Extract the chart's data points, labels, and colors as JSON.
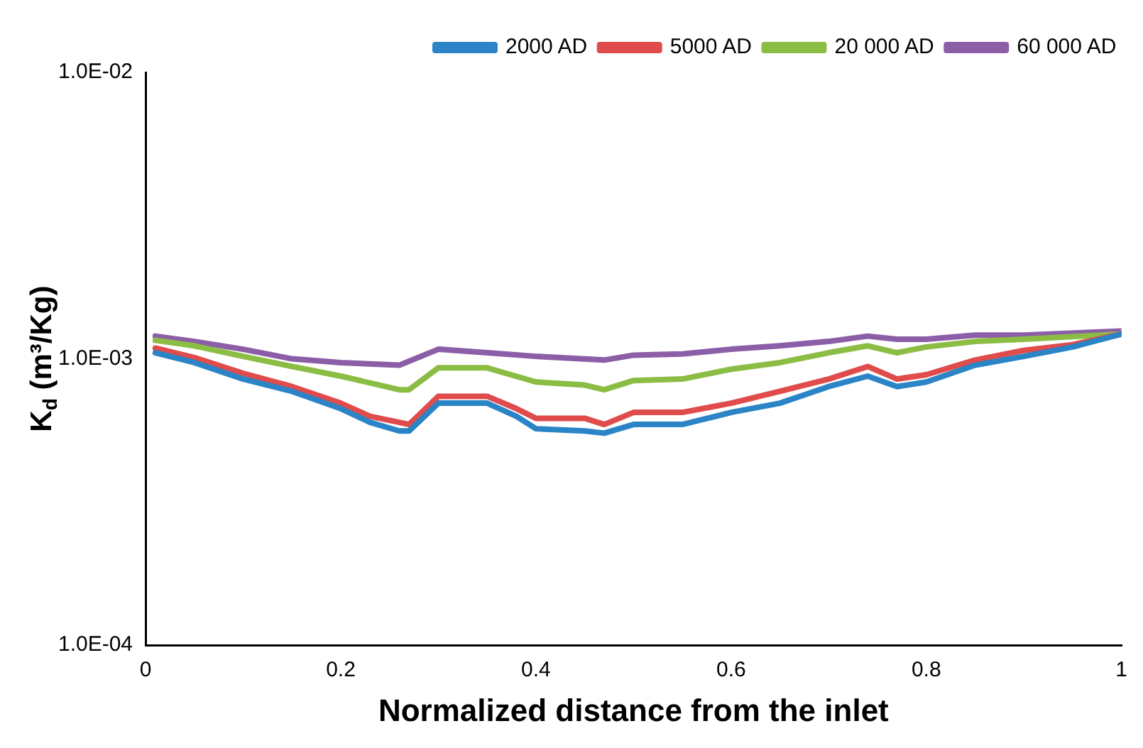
{
  "chart_data": {
    "type": "line",
    "xlabel": "Normalized distance from the inlet",
    "ylabel": "K$_{d}$ (m³/Kg)",
    "log": "y",
    "grid": false,
    "legend": "top right",
    "marker": "none",
    "line_style": "solid",
    "xlim": [
      0,
      1
    ],
    "xticks": [
      0,
      0.2,
      0.4,
      0.6,
      0.8,
      1
    ],
    "ylim": [
      0.0001,
      0.01
    ],
    "yticks": [
      {
        "value": 0.0001,
        "label": "1.0E-04"
      },
      {
        "value": 0.001,
        "label": "1.0E-03"
      },
      {
        "value": 0.01,
        "label": "1.0E-02"
      }
    ],
    "series": [
      {
        "name": "2000 AD",
        "color": "#2a84c6",
        "x": [
          0.01,
          0.05,
          0.1,
          0.15,
          0.2,
          0.23,
          0.26,
          0.27,
          0.3,
          0.35,
          0.38,
          0.4,
          0.45,
          0.47,
          0.5,
          0.55,
          0.6,
          0.65,
          0.7,
          0.74,
          0.77,
          0.8,
          0.85,
          0.9,
          0.95,
          1.0
        ],
        "values": [
          0.00105,
          0.00097,
          0.00085,
          0.00077,
          0.00067,
          0.0006,
          0.00056,
          0.00056,
          0.0007,
          0.0007,
          0.00063,
          0.00057,
          0.00056,
          0.00055,
          0.00059,
          0.00059,
          0.00065,
          0.0007,
          0.0008,
          0.00087,
          0.0008,
          0.00083,
          0.00095,
          0.00102,
          0.0011,
          0.00122
        ]
      },
      {
        "name": "5000 AD",
        "color": "#e04b4b",
        "x": [
          0.01,
          0.05,
          0.1,
          0.15,
          0.2,
          0.23,
          0.26,
          0.27,
          0.3,
          0.35,
          0.38,
          0.4,
          0.45,
          0.47,
          0.5,
          0.55,
          0.6,
          0.65,
          0.7,
          0.74,
          0.77,
          0.8,
          0.85,
          0.9,
          0.95,
          1.0
        ],
        "values": [
          0.00109,
          0.00101,
          0.00089,
          0.0008,
          0.0007,
          0.00063,
          0.0006,
          0.00059,
          0.00074,
          0.00074,
          0.00067,
          0.00062,
          0.00062,
          0.00059,
          0.00065,
          0.00065,
          0.0007,
          0.00077,
          0.00085,
          0.00094,
          0.00085,
          0.00088,
          0.00099,
          0.00107,
          0.00112,
          0.00122
        ]
      },
      {
        "name": "20 000 AD",
        "color": "#8bbd45",
        "x": [
          0.01,
          0.05,
          0.1,
          0.15,
          0.2,
          0.26,
          0.27,
          0.3,
          0.35,
          0.4,
          0.45,
          0.47,
          0.5,
          0.55,
          0.6,
          0.65,
          0.7,
          0.74,
          0.77,
          0.8,
          0.85,
          0.9,
          1.0
        ],
        "values": [
          0.00116,
          0.00111,
          0.00102,
          0.00094,
          0.00087,
          0.00078,
          0.00078,
          0.00093,
          0.00093,
          0.00083,
          0.00081,
          0.00078,
          0.00084,
          0.00085,
          0.00092,
          0.00097,
          0.00105,
          0.00111,
          0.00105,
          0.0011,
          0.00115,
          0.00117,
          0.00122
        ]
      },
      {
        "name": "60 000 AD",
        "color": "#8c5ea8",
        "x": [
          0.01,
          0.05,
          0.1,
          0.15,
          0.2,
          0.26,
          0.3,
          0.35,
          0.4,
          0.47,
          0.5,
          0.55,
          0.6,
          0.65,
          0.7,
          0.74,
          0.77,
          0.8,
          0.85,
          0.9,
          1.0
        ],
        "values": [
          0.0012,
          0.00115,
          0.00108,
          0.001,
          0.00097,
          0.00095,
          0.00108,
          0.00105,
          0.00102,
          0.00099,
          0.00103,
          0.00104,
          0.00108,
          0.00111,
          0.00115,
          0.0012,
          0.00117,
          0.00117,
          0.00121,
          0.00121,
          0.00125
        ]
      }
    ]
  }
}
